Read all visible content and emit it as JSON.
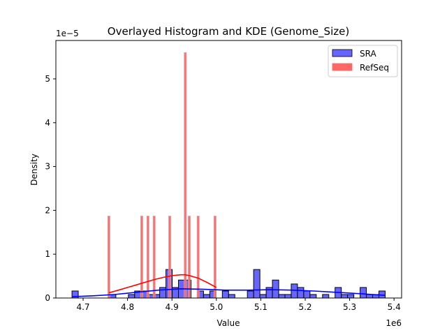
{
  "chart_data": {
    "type": "histogram+kde",
    "title": "Overlayed Histogram and KDE (Genome_Size)",
    "xlabel": "Value",
    "ylabel": "Density",
    "x_offset_label": "1e6",
    "y_offset_label": "1e−5",
    "xlim": [
      4.6387,
      5.417
    ],
    "ylim": [
      0,
      5.876
    ],
    "xticks": [
      4.7,
      4.8,
      4.9,
      5.0,
      5.1,
      5.2,
      5.3,
      5.4
    ],
    "xtick_labels": [
      "4.7",
      "4.8",
      "4.9",
      "5.0",
      "5.1",
      "5.2",
      "5.3",
      "5.4"
    ],
    "yticks": [
      0,
      1,
      2,
      3,
      4,
      5
    ],
    "ytick_labels": [
      "0",
      "1",
      "2",
      "3",
      "4",
      "5"
    ],
    "grid": false,
    "legend_position": "top-right",
    "series": [
      {
        "name": "SRA",
        "color": "#0000ff",
        "bar_color": "#6666ff",
        "bin_start": 4.675,
        "bin_width": 0.0141,
        "values": [
          0.16,
          0,
          0,
          0,
          0,
          0,
          0.08,
          0,
          0,
          0.08,
          0.16,
          0.16,
          0.08,
          0.08,
          0.24,
          0.65,
          0.24,
          0.41,
          0.41,
          0,
          0.16,
          0.08,
          0.16,
          0,
          0.16,
          0.08,
          0,
          0,
          0.16,
          0.65,
          0.08,
          0.24,
          0.41,
          0.08,
          0.08,
          0.32,
          0.24,
          0.16,
          0.08,
          0,
          0.08,
          0,
          0.24,
          0.08,
          0.08,
          0,
          0.24,
          0.08,
          0.08,
          0.16
        ],
        "kde": {
          "x": [
            4.675,
            4.72,
            4.77,
            4.82,
            4.87,
            4.92,
            4.97,
            5.02,
            5.07,
            5.12,
            5.17,
            5.22,
            5.27,
            5.32,
            5.38
          ],
          "y": [
            0.03,
            0.05,
            0.08,
            0.13,
            0.18,
            0.21,
            0.2,
            0.18,
            0.18,
            0.19,
            0.18,
            0.16,
            0.13,
            0.1,
            0.06
          ]
        }
      },
      {
        "name": "RefSeq",
        "color": "#ff0000",
        "bar_color": "#ff6666",
        "bin_width": 0.0048,
        "bar_centers": [
          4.758,
          4.832,
          4.846,
          4.86,
          4.895,
          4.93,
          4.939,
          4.959,
          4.997
        ],
        "values": [
          1.87,
          1.87,
          1.87,
          1.87,
          1.87,
          5.6,
          1.87,
          1.87,
          1.87
        ],
        "kde": {
          "x": [
            4.758,
            4.78,
            4.8,
            4.82,
            4.84,
            4.86,
            4.88,
            4.9,
            4.92,
            4.93,
            4.94,
            4.96,
            4.98,
            5.0
          ],
          "y": [
            0.12,
            0.18,
            0.24,
            0.3,
            0.36,
            0.42,
            0.47,
            0.51,
            0.53,
            0.53,
            0.51,
            0.45,
            0.35,
            0.24
          ]
        }
      }
    ]
  }
}
